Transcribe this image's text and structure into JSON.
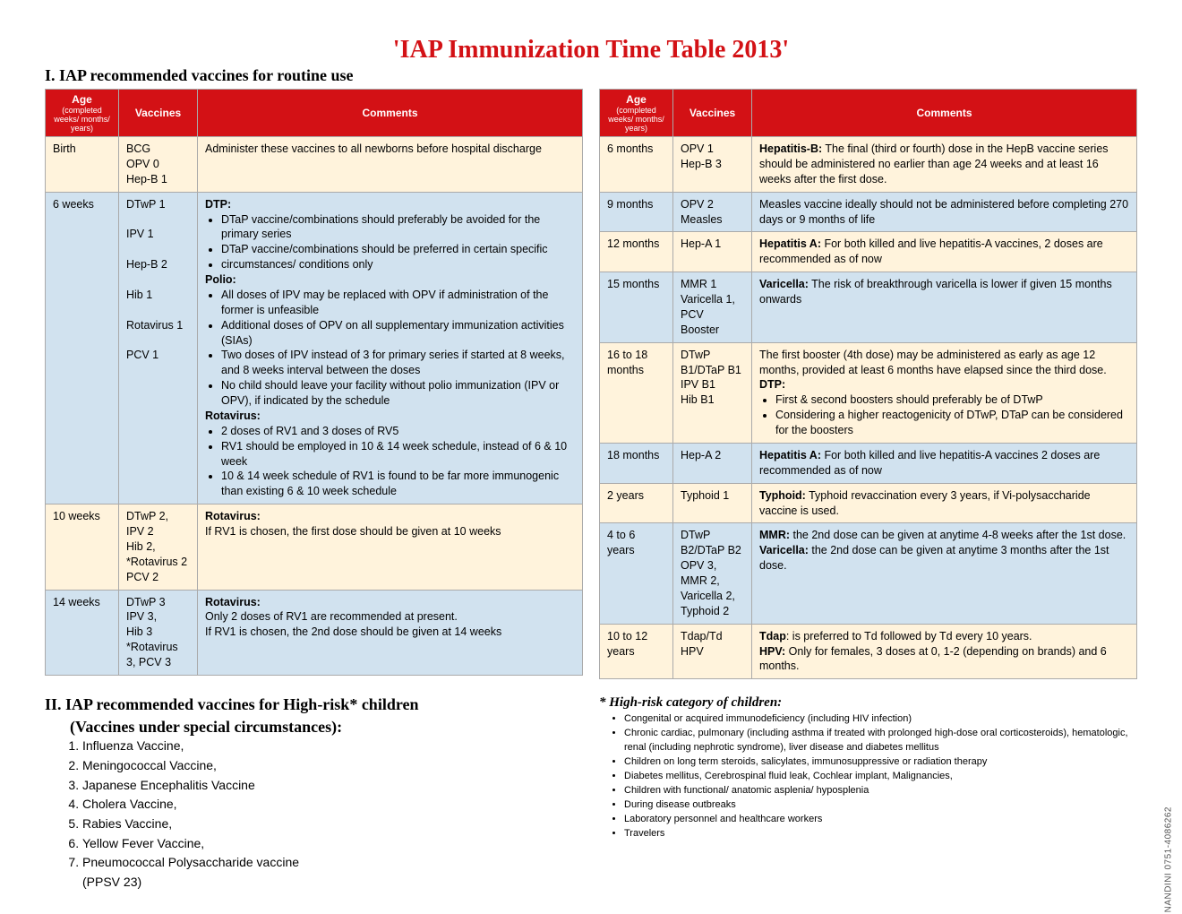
{
  "title": "'IAP Immunization Time Table 2013'",
  "section1_heading": "I. IAP recommended vaccines for routine use",
  "headers": {
    "age": "Age",
    "age_sub": "(completed  weeks/ months/ years)",
    "vaccines": "Vaccines",
    "comments": "Comments"
  },
  "left_rows": [
    {
      "cls": "row-cream",
      "age": "Birth",
      "vac": "BCG<br>OPV 0<br>Hep-B 1",
      "com": "Administer these vaccines to all newborns before hospital discharge"
    },
    {
      "cls": "row-blue",
      "age": "6 weeks",
      "vac": "DTwP 1<br><br>IPV 1<br><br>Hep-B 2<br><br>Hib 1<br><br>Rotavirus 1<br><br>PCV 1",
      "com": "<b>DTP:</b><ul class='bullets'><li>DTaP vaccine/combinations should preferably be avoided for the primary series</li><li>DTaP vaccine/combinations should be preferred in  certain specific</li><li>circumstances/ conditions only</li></ul><b>Polio:</b><ul class='bullets'><li>All doses of IPV may be replaced with OPV if administration of the former is unfeasible</li><li>Additional doses of OPV on all supplementary immunization activities (SIAs)</li><li>Two doses of IPV instead of 3 for primary series if started at 8 weeks, and 8 weeks interval between the doses</li><li>No child should leave your facility without polio immunization (IPV or OPV), if indicated by the schedule</li></ul><b>Rotavirus:</b><ul class='bullets'><li>2 doses of RV1 and 3 doses of RV5</li><li>RV1 should be employed in 10 &amp; 14 week schedule, instead of  6 &amp; 10 week</li><li>10 &amp; 14 week schedule of RV1 is found to be far more immunogenic than existing 6 &amp; 10 week schedule</li></ul>"
    },
    {
      "cls": "row-cream",
      "age": "10 weeks",
      "vac": "DTwP 2,<br>IPV 2<br>Hib 2,<br>*Rotavirus 2<br>PCV 2",
      "com": "<b>Rotavirus:</b><br>If RV1 is chosen, the first dose should be given at 10 weeks"
    },
    {
      "cls": "row-blue",
      "age": "14 weeks",
      "vac": "DTwP 3<br>IPV 3,<br>Hib 3<br>*Rotavirus 3, PCV 3",
      "com": "<b>Rotavirus:</b><br>Only 2 doses of RV1 are recommended at present.<br>If RV1 is chosen, the 2nd dose should be given at 14 weeks"
    }
  ],
  "right_rows": [
    {
      "cls": "row-cream",
      "age": "6 months",
      "vac": "OPV 1<br>Hep-B 3",
      "com": "<b>Hepatitis-B:</b> The final (third or fourth) dose in the HepB vaccine series should be administered no earlier than age 24 weeks and at least 16 weeks after the first dose."
    },
    {
      "cls": "row-blue",
      "age": "9 months",
      "vac": "OPV 2<br>Measles",
      "com": "Measles vaccine ideally should not be administered before completing 270 days or 9 months of life"
    },
    {
      "cls": "row-cream",
      "age": "12 months",
      "vac": "Hep-A 1",
      "com": "<b>Hepatitis A:</b> For both killed and live hepatitis-A vaccines,  2 doses are recommended as of now"
    },
    {
      "cls": "row-blue",
      "age": "15 months",
      "vac": "MMR 1<br>Varicella 1,<br>PCV Booster",
      "com": "<b>Varicella:</b> The risk of breakthrough varicella is lower if given 15 months onwards"
    },
    {
      "cls": "row-cream",
      "age": "16 to 18 months",
      "vac": "DTwP B1/DTaP B1<br>IPV B1<br>Hib B1",
      "com": "The first booster (4th dose) may be administered as early as age 12 months, provided at least 6 months have elapsed since the third dose.<br><b>DTP:</b><ul class='bullets'><li>First &amp; second boosters should preferably be of DTwP</li><li>Considering a higher reactogenicity of DTwP, DTaP can be considered for the boosters</li></ul>"
    },
    {
      "cls": "row-blue",
      "age": "18 months",
      "vac": "Hep-A 2",
      "com": "<b>Hepatitis A:</b> For both killed and live hepatitis-A vaccines 2 doses are recommended as of now"
    },
    {
      "cls": "row-cream",
      "age": "2 years",
      "vac": "Typhoid 1",
      "com": "<b>Typhoid:</b>  Typhoid revaccination every 3 years, if Vi-polysaccharide vaccine is used."
    },
    {
      "cls": "row-blue",
      "age": "4  to 6 years",
      "vac": "DTwP B2/DTaP B2<br>OPV 3,<br>MMR 2,<br>Varicella 2,<br>Typhoid 2",
      "com": "<b>MMR:</b> the 2nd dose can be given at anytime 4-8 weeks after the 1st dose.<br><b>Varicella:</b> the 2nd dose can be given at anytime 3 months after the 1st dose."
    },
    {
      "cls": "row-cream",
      "age": "10 to 12 years",
      "vac": "Tdap/Td<br>HPV",
      "com": "<b>Tdap</b>: is preferred to Td followed by Td every 10 years.<br><b>HPV:</b> Only for females, 3 doses at 0, 1-2 (depending on brands) and 6 months."
    }
  ],
  "section2_heading_l1": "II.  IAP recommended vaccines for High-risk* children",
  "section2_heading_l2": "(Vaccines under special circumstances):",
  "vaccine_list": [
    "Influenza Vaccine,",
    "Meningococcal Vaccine,",
    "Japanese Encephalitis Vaccine",
    "Cholera Vaccine,",
    "Rabies Vaccine,",
    "Yellow Fever Vaccine,",
    "Pneumococcal Polysaccharide vaccine<br>(PPSV 23)"
  ],
  "risk_title": "* High-risk category of children:",
  "risk_list": [
    "Congenital or acquired immunodeficiency (including HIV infection)",
    "Chronic cardiac, pulmonary (including asthma if treated with prolonged high-dose oral corticosteroids), hematologic, renal (including nephrotic syndrome), liver disease and diabetes mellitus",
    "Children on long term steroids, salicylates, immunosuppressive or radiation therapy",
    "Diabetes mellitus, Cerebrospinal fluid leak,  Cochlear implant, Malignancies,",
    "Children with functional/ anatomic asplenia/ hyposplenia",
    "During disease outbreaks",
    "Laboratory personnel and healthcare workers",
    "Travelers"
  ],
  "sidecode": "NANDINI 0751-4086262"
}
